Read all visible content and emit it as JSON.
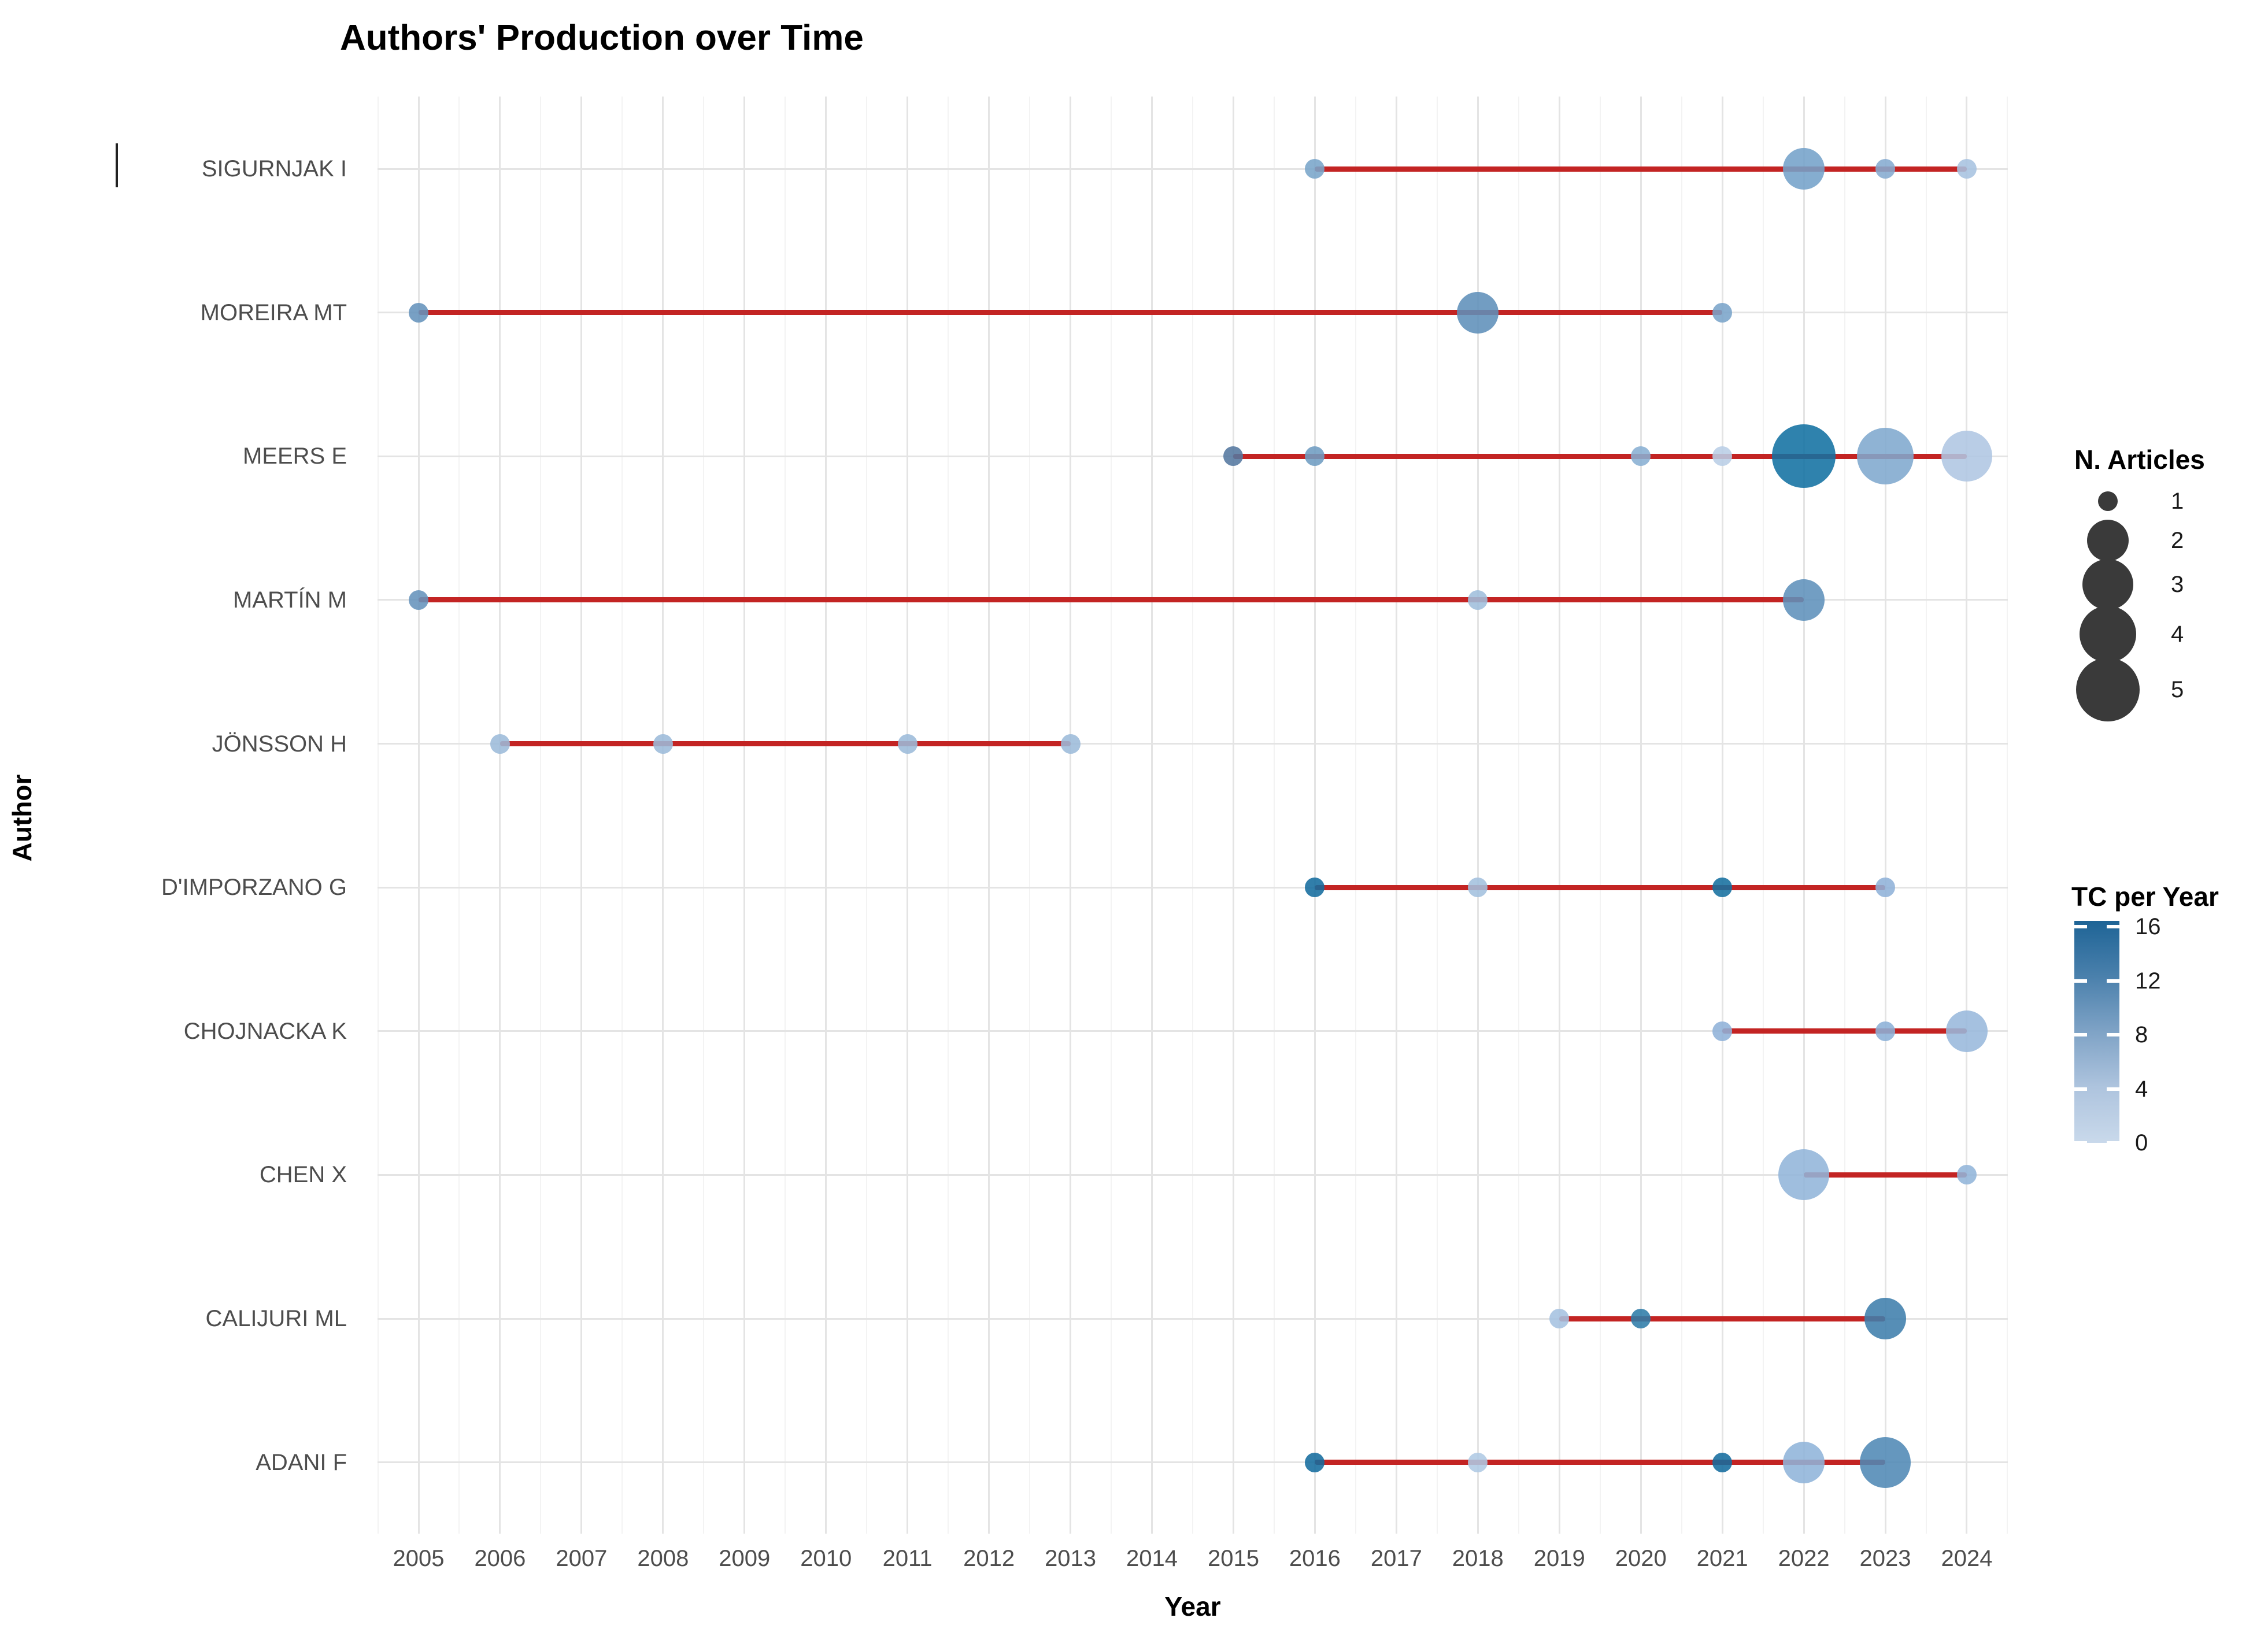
{
  "title": "Authors' Production over Time",
  "axes": {
    "x_label": "Year",
    "y_label": "Author"
  },
  "chart_data": {
    "type": "scatter",
    "title": "Authors' Production over Time",
    "xlabel": "Year",
    "ylabel": "Author",
    "x_ticks": [
      2005,
      2006,
      2007,
      2008,
      2009,
      2010,
      2011,
      2012,
      2013,
      2014,
      2015,
      2016,
      2017,
      2018,
      2019,
      2020,
      2021,
      2022,
      2023,
      2024
    ],
    "x_range": [
      2004.5,
      2024.5
    ],
    "grid": true,
    "timeline_color": "#C32423",
    "series": [
      {
        "author": "SIGURNJAK I",
        "line_years": [
          2016,
          2024
        ],
        "points": [
          {
            "year": 2016,
            "articles": 1,
            "tc_per_year": 8,
            "color": "#79A5CA"
          },
          {
            "year": 2022,
            "articles": 2,
            "tc_per_year": 9,
            "color": "#74A2C9"
          },
          {
            "year": 2023,
            "articles": 1,
            "tc_per_year": 7,
            "color": "#85ABD0"
          },
          {
            "year": 2024,
            "articles": 1,
            "tc_per_year": 4,
            "color": "#A7C3E0"
          }
        ]
      },
      {
        "author": "MOREIRA MT",
        "line_years": [
          2005,
          2021
        ],
        "points": [
          {
            "year": 2005,
            "articles": 1,
            "tc_per_year": 10,
            "color": "#6593BC"
          },
          {
            "year": 2018,
            "articles": 2,
            "tc_per_year": 11,
            "color": "#5E90BA"
          },
          {
            "year": 2021,
            "articles": 1,
            "tc_per_year": 8,
            "color": "#7AA4C9"
          }
        ]
      },
      {
        "author": "MEERS E",
        "line_years": [
          2015,
          2024
        ],
        "points": [
          {
            "year": 2015,
            "articles": 1,
            "tc_per_year": 10,
            "color": "#54789F"
          },
          {
            "year": 2016,
            "articles": 1,
            "tc_per_year": 9,
            "color": "#6E9CC2"
          },
          {
            "year": 2020,
            "articles": 1,
            "tc_per_year": 6,
            "color": "#89AFD3"
          },
          {
            "year": 2021,
            "articles": 1,
            "tc_per_year": 1,
            "color": "#B9CEE6"
          },
          {
            "year": 2022,
            "articles": 5,
            "tc_per_year": 16,
            "color": "#1271A2"
          },
          {
            "year": 2023,
            "articles": 4,
            "tc_per_year": 7,
            "color": "#7FA8CE"
          },
          {
            "year": 2024,
            "articles": 3,
            "tc_per_year": 3,
            "color": "#AFC6E2"
          }
        ]
      },
      {
        "author": "MARTÍN M",
        "line_years": [
          2005,
          2022
        ],
        "points": [
          {
            "year": 2005,
            "articles": 1,
            "tc_per_year": 10,
            "color": "#6593BC"
          },
          {
            "year": 2018,
            "articles": 1,
            "tc_per_year": 4,
            "color": "#9FBEDC"
          },
          {
            "year": 2022,
            "articles": 2,
            "tc_per_year": 10,
            "color": "#5F91BB"
          }
        ]
      },
      {
        "author": "JÖNSSON H",
        "line_years": [
          2006,
          2013
        ],
        "points": [
          {
            "year": 2006,
            "articles": 1,
            "tc_per_year": 5,
            "color": "#9CBBDA"
          },
          {
            "year": 2008,
            "articles": 1,
            "tc_per_year": 5,
            "color": "#9CBBDA"
          },
          {
            "year": 2011,
            "articles": 1,
            "tc_per_year": 5,
            "color": "#9CBBDA"
          },
          {
            "year": 2013,
            "articles": 1,
            "tc_per_year": 5,
            "color": "#9CBBDA"
          }
        ]
      },
      {
        "author": "D'IMPORZANO G",
        "line_years": [
          2016,
          2023
        ],
        "points": [
          {
            "year": 2016,
            "articles": 1,
            "tc_per_year": 15,
            "color": "#156C9E"
          },
          {
            "year": 2018,
            "articles": 1,
            "tc_per_year": 4,
            "color": "#A3C0DE"
          },
          {
            "year": 2021,
            "articles": 1,
            "tc_per_year": 15,
            "color": "#16709F"
          },
          {
            "year": 2023,
            "articles": 1,
            "tc_per_year": 6,
            "color": "#8FB2D8"
          }
        ]
      },
      {
        "author": "CHOJNACKA K",
        "line_years": [
          2021,
          2024
        ],
        "points": [
          {
            "year": 2021,
            "articles": 1,
            "tc_per_year": 6,
            "color": "#8FB2D8"
          },
          {
            "year": 2023,
            "articles": 1,
            "tc_per_year": 6,
            "color": "#8CB0D7"
          },
          {
            "year": 2024,
            "articles": 2,
            "tc_per_year": 5,
            "color": "#98B8DC"
          }
        ]
      },
      {
        "author": "CHEN X",
        "line_years": [
          2022,
          2024
        ],
        "points": [
          {
            "year": 2022,
            "articles": 3,
            "tc_per_year": 6,
            "color": "#92B5DA"
          },
          {
            "year": 2024,
            "articles": 1,
            "tc_per_year": 6,
            "color": "#92B5DA"
          }
        ]
      },
      {
        "author": "CALIJURI ML",
        "line_years": [
          2019,
          2023
        ],
        "points": [
          {
            "year": 2019,
            "articles": 1,
            "tc_per_year": 4,
            "color": "#A5C2E0"
          },
          {
            "year": 2020,
            "articles": 1,
            "tc_per_year": 13,
            "color": "#2E7CA8"
          },
          {
            "year": 2023,
            "articles": 2,
            "tc_per_year": 12,
            "color": "#3F7EAC"
          }
        ]
      },
      {
        "author": "ADANI F",
        "line_years": [
          2016,
          2023
        ],
        "points": [
          {
            "year": 2016,
            "articles": 1,
            "tc_per_year": 15,
            "color": "#156C9E"
          },
          {
            "year": 2018,
            "articles": 1,
            "tc_per_year": 3,
            "color": "#AFC9E4"
          },
          {
            "year": 2021,
            "articles": 1,
            "tc_per_year": 15,
            "color": "#156C9E"
          },
          {
            "year": 2022,
            "articles": 2,
            "tc_per_year": 6,
            "color": "#8FB4D9"
          },
          {
            "year": 2023,
            "articles": 3,
            "tc_per_year": 11,
            "color": "#5089B5"
          }
        ]
      }
    ],
    "size_legend": {
      "title": "N. Articles",
      "values": [
        1,
        2,
        3,
        4,
        5
      ],
      "circle_color": "#3A3A3A"
    },
    "color_legend": {
      "title": "TC per Year",
      "ticks": [
        16,
        12,
        8,
        4,
        0
      ],
      "range": [
        0,
        16
      ],
      "gradient_bottom_to_top": [
        "#C9D9EB",
        "#AEC4DE",
        "#7FA3C6",
        "#4A80AC",
        "#1E6496"
      ]
    }
  }
}
